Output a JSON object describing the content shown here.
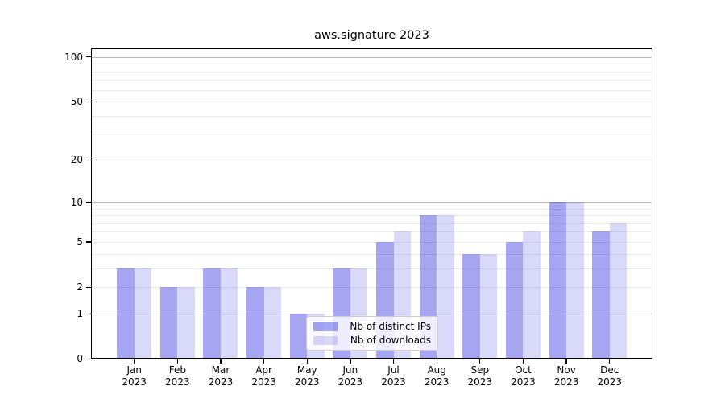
{
  "title": "aws.signature 2023",
  "chart_data": {
    "type": "bar",
    "title": "aws.signature 2023",
    "categories": [
      "Jan",
      "Feb",
      "Mar",
      "Apr",
      "May",
      "Jun",
      "Jul",
      "Aug",
      "Sep",
      "Oct",
      "Nov",
      "Dec"
    ],
    "category_year": "2023",
    "series": [
      {
        "name": "Nb of distinct IPs",
        "values": [
          3,
          2,
          3,
          2,
          1,
          3,
          5,
          8,
          4,
          5,
          10,
          6
        ],
        "color": "#0000dc",
        "alpha": 0.35
      },
      {
        "name": "Nb of downloads",
        "values": [
          3,
          2,
          3,
          2,
          1,
          3,
          6,
          8,
          4,
          6,
          10,
          7
        ],
        "color": "#0000dc",
        "alpha": 0.15
      }
    ],
    "xlabel": "",
    "ylabel": "",
    "y_scale": "log1p",
    "ylim": [
      0,
      114
    ],
    "y_ticks": [
      0,
      1,
      2,
      5,
      10,
      20,
      50,
      100
    ],
    "y_major_gridlines": [
      1,
      10,
      100
    ],
    "y_minor_gridlines": [
      3,
      4,
      6,
      7,
      8,
      9,
      30,
      40,
      60,
      70,
      80,
      90
    ],
    "grid": true,
    "legend_position": "lower center"
  },
  "colors": {
    "background": "#ffffff",
    "axis": "#000000",
    "grid_major": "#b8b8b8",
    "grid_minor": "#ebebeb",
    "bar_dark": "#0000dc",
    "bar_light": "#0000dc"
  }
}
